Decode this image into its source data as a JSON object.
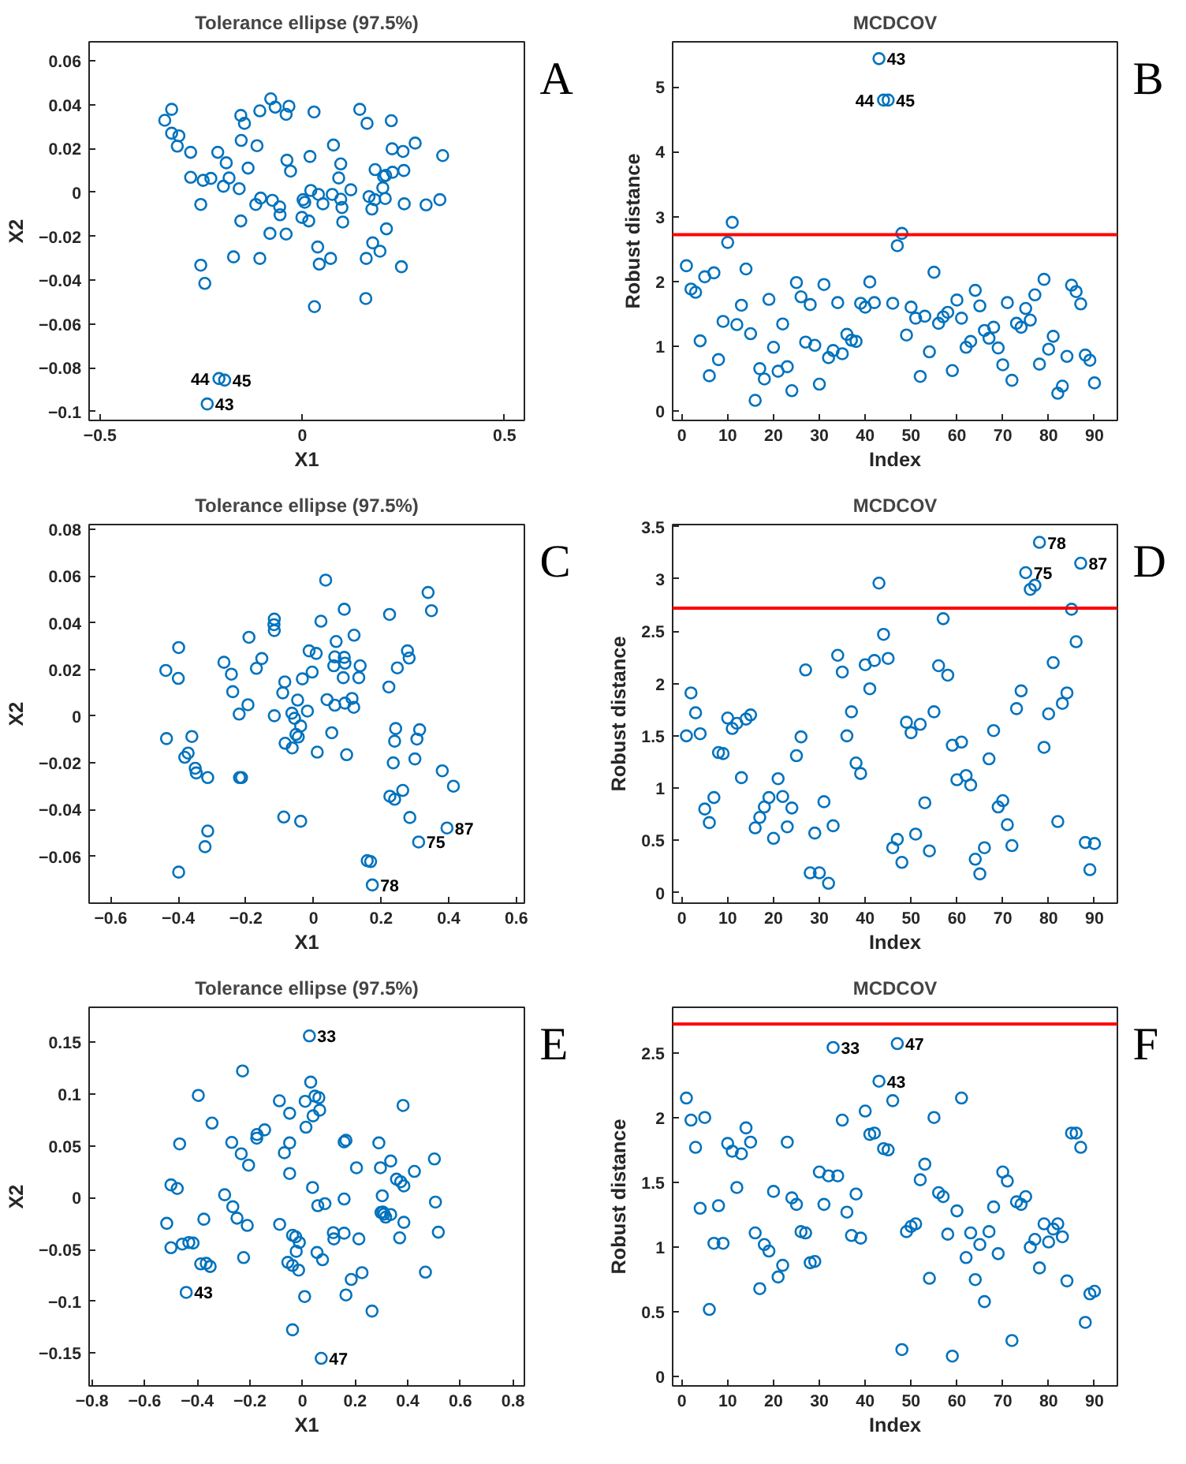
{
  "chart_data": [
    {
      "type": "scatter",
      "title": "Tolerance ellipse (97.5%)",
      "xlabel": "X1",
      "ylabel": "X2",
      "marker": "circle",
      "xlim": [
        -0.527,
        0.549
      ],
      "ylim": [
        -0.104,
        0.0687
      ],
      "xticks": [
        -0.5,
        0,
        0.5
      ],
      "yticks": [
        -0.1,
        -0.08,
        -0.06,
        -0.04,
        -0.02,
        0,
        0.02,
        0.04,
        0.06
      ],
      "series": [
        {
          "color": "#0072bd",
          "x": [
            -0.34,
            -0.323,
            -0.323,
            -0.305,
            -0.309,
            -0.276,
            -0.276,
            -0.245,
            -0.226,
            -0.251,
            -0.209,
            -0.188,
            -0.181,
            -0.195,
            -0.156,
            -0.152,
            -0.143,
            -0.151,
            -0.134,
            -0.152,
            -0.17,
            -0.251,
            -0.241,
            -0.105,
            -0.078,
            -0.067,
            -0.033,
            -0.04,
            -0.112,
            -0.115,
            -0.103,
            -0.074,
            -0.056,
            -0.055,
            -0.038,
            -0.029,
            -0.08,
            -0.04,
            -0.105,
            0.029,
            0.019,
            0.021,
            0.002,
            0.006,
            -0.001,
            0.016,
            0.04,
            0.051,
            0.038,
            0.042,
            0.07,
            0.03,
            0.077,
            0.09,
            0.095,
            0.074,
            0.095,
            0.098,
            0.1,
            0.12,
            0.142,
            0.16,
            0.18,
            0.165,
            0.179,
            0.172,
            0.158,
            0.174,
            0.192,
            0.157,
            0.22,
            0.222,
            0.249,
            0.223,
            0.251,
            0.279,
            0.201,
            0.206,
            0.199,
            0.205,
            0.208,
            0.252,
            0.245,
            0.347,
            0.34,
            0.306,
            -0.206,
            -0.192,
            -0.235
          ],
          "values": [
            0.0329,
            0.0379,
            0.027,
            0.0258,
            0.0211,
            0.0183,
            0.0069,
            0.0055,
            0.0064,
            -0.0055,
            0.0183,
            0.0135,
            0.0066,
            0.0028,
            0.0017,
            0.0351,
            0.0315,
            0.0237,
            0.0111,
            -0.013,
            -0.0294,
            -0.0332,
            -0.0415,
            0.0372,
            0.0427,
            0.0389,
            0.0393,
            0.0356,
            0.0213,
            -0.0055,
            -0.0026,
            -0.0036,
            -0.0066,
            -0.0102,
            0.0147,
            0.0097,
            -0.0187,
            -0.019,
            -0.0301,
            0.0367,
            0.0164,
            0.0009,
            -0.0033,
            -0.0045,
            -0.0114,
            -0.013,
            -0.0009,
            -0.0052,
            -0.0249,
            -0.0327,
            -0.0301,
            -0.0521,
            0.0216,
            0.0066,
            0.013,
            -0.0009,
            -0.0031,
            -0.0069,
            -0.0135,
            0.0012,
            0.0379,
            0.0315,
            0.0104,
            -0.0019,
            -0.0033,
            -0.0076,
            -0.0301,
            -0.023,
            -0.0268,
            -0.0484,
            0.0327,
            0.0199,
            0.0187,
            0.0092,
            0.01,
            0.0225,
            0.0073,
            0.0078,
            0.0021,
            -0.0028,
            -0.0166,
            -0.0052,
            -0.0339,
            0.0168,
            -0.0033,
            -0.0057,
            -0.0849,
            -0.0856,
            -0.0965
          ]
        }
      ],
      "annotations": [
        "A",
        {
          "text": "44",
          "x": -0.206,
          "y": -0.0849
        },
        {
          "text": "45",
          "x": -0.192,
          "y": -0.0856
        },
        {
          "text": "43",
          "x": -0.235,
          "y": -0.0965
        }
      ]
    },
    {
      "type": "scatter",
      "title": "MCDCOV",
      "xlabel": "Index",
      "ylabel": "Robust distance",
      "marker": "circle",
      "xlim": [
        -2,
        95
      ],
      "ylim": [
        -0.15,
        5.7
      ],
      "xticks": [
        0,
        10,
        20,
        30,
        40,
        50,
        60,
        70,
        80,
        90
      ],
      "yticks": [
        0,
        1,
        2,
        3,
        4,
        5
      ],
      "x": [
        1,
        2,
        3,
        4,
        5,
        6,
        7,
        8,
        9,
        10,
        11,
        12,
        13,
        14,
        15,
        16,
        17,
        18,
        19,
        20,
        21,
        22,
        23,
        24,
        25,
        26,
        27,
        28,
        29,
        30,
        31,
        32,
        33,
        34,
        35,
        36,
        37,
        38,
        39,
        40,
        41,
        42,
        43,
        44,
        45,
        46,
        47,
        48,
        49,
        50,
        51,
        52,
        53,
        54,
        55,
        56,
        57,
        58,
        59,
        60,
        61,
        62,
        63,
        64,
        65,
        66,
        67,
        68,
        69,
        70,
        71,
        72,
        73,
        74,
        75,
        76,
        77,
        78,
        79,
        80,
        81,
        82,
        83,
        84,
        85,
        86,
        87,
        88,
        89,
        90
      ],
      "series": [
        {
          "color": "#0072bd",
          "values": [
            2.24,
            1.88,
            1.83,
            1.08,
            2.07,
            0.54,
            2.13,
            0.79,
            1.38,
            2.6,
            2.91,
            1.33,
            1.63,
            2.19,
            1.19,
            0.16,
            0.65,
            0.49,
            1.72,
            0.98,
            0.61,
            1.34,
            0.68,
            0.31,
            1.98,
            1.76,
            1.06,
            1.64,
            1.01,
            0.41,
            1.95,
            0.82,
            0.93,
            1.67,
            0.88,
            1.18,
            1.09,
            1.07,
            1.66,
            1.6,
            1.99,
            1.67,
            5.44,
            4.8,
            4.8,
            1.66,
            2.55,
            2.74,
            1.17,
            1.6,
            1.43,
            0.53,
            1.46,
            0.91,
            2.14,
            1.35,
            1.45,
            1.52,
            0.62,
            1.71,
            1.43,
            0.98,
            1.07,
            1.86,
            1.62,
            1.24,
            1.12,
            1.29,
            0.97,
            0.71,
            1.67,
            0.47,
            1.35,
            1.29,
            1.58,
            1.4,
            1.79,
            0.72,
            2.03,
            0.95,
            1.15,
            0.27,
            0.38,
            0.84,
            1.94,
            1.84,
            1.65,
            0.86,
            0.78,
            0.43
          ]
        }
      ],
      "ref_lines": [
        {
          "axis": "y",
          "value": 2.72,
          "color": "#ff0000"
        }
      ],
      "annotations": [
        "B",
        {
          "text": "43",
          "x": 43,
          "y": 5.44
        },
        {
          "text": "44",
          "x": 44,
          "y": 4.8
        },
        {
          "text": "45",
          "x": 45,
          "y": 4.8
        }
      ]
    },
    {
      "type": "scatter",
      "title": "Tolerance ellipse (97.5%)",
      "xlabel": "X1",
      "ylabel": "X2",
      "marker": "circle",
      "xlim": [
        -0.664,
        0.624
      ],
      "ylim": [
        -0.0801,
        0.0821
      ],
      "xticks": [
        -0.6,
        -0.4,
        -0.2,
        0,
        0.2,
        0.4,
        0.6
      ],
      "yticks": [
        -0.06,
        -0.04,
        -0.02,
        0,
        0.02,
        0.04,
        0.06,
        0.08
      ],
      "series": [
        {
          "color": "#0072bd",
          "x": [
            0.036,
            0.091,
            0.339,
            0.349,
            0.225,
            -0.116,
            -0.117,
            -0.116,
            -0.191,
            0.022,
            -0.013,
            0.008,
            0.12,
            0.067,
            0.091,
            0.063,
            0.06,
            0.093,
            0.138,
            0.134,
            0.088,
            -0.265,
            -0.437,
            -0.4,
            -0.399,
            -0.243,
            -0.169,
            -0.153,
            -0.085,
            -0.033,
            -0.004,
            -0.239,
            -0.194,
            -0.22,
            -0.116,
            -0.091,
            -0.047,
            -0.018,
            -0.064,
            -0.056,
            -0.038,
            -0.052,
            -0.045,
            -0.084,
            -0.063,
            0.011,
            0.063,
            0.054,
            0.04,
            0.093,
            0.114,
            0.119,
            0.098,
            0.223,
            0.278,
            0.283,
            0.248,
            0.243,
            0.314,
            0.24,
            0.306,
            0.236,
            0.3,
            -0.435,
            -0.36,
            -0.371,
            -0.381,
            -0.35,
            -0.347,
            -0.313,
            -0.219,
            -0.213,
            -0.088,
            -0.038,
            -0.313,
            -0.321,
            -0.399,
            0.226,
            0.24,
            0.264,
            0.285,
            0.381,
            0.414,
            0.395,
            0.311,
            0.159,
            0.169,
            0.174
          ],
          "values": [
            0.0583,
            0.0458,
            0.053,
            0.0452,
            0.0436,
            0.0416,
            0.0392,
            0.0367,
            0.0338,
            0.0407,
            0.028,
            0.0269,
            0.0347,
            0.032,
            0.0252,
            0.0254,
            0.0216,
            0.0227,
            0.0216,
            0.0165,
            0.0165,
            0.0231,
            0.0196,
            0.0162,
            0.0294,
            0.018,
            0.0205,
            0.0247,
            0.0147,
            0.016,
            0.0189,
            0.0105,
            0.0049,
            0.0009,
            0.0002,
            0.01,
            0.0069,
            0.0022,
            0.0013,
            -0.0009,
            -0.0042,
            -0.0078,
            -0.0089,
            -0.0116,
            -0.0136,
            -0.0154,
            0.0047,
            -0.0071,
            0.0071,
            0.0056,
            0.0076,
            0.0038,
            -0.0165,
            0.0125,
            0.028,
            0.0249,
            0.0207,
            -0.0053,
            -0.0058,
            -0.0107,
            -0.0098,
            -0.02,
            -0.0183,
            -0.0096,
            -0.0087,
            -0.0158,
            -0.0176,
            -0.0223,
            -0.0243,
            -0.0263,
            -0.0263,
            -0.0263,
            -0.0432,
            -0.045,
            -0.0492,
            -0.0559,
            -0.0668,
            -0.0343,
            -0.0356,
            -0.0318,
            -0.0434,
            -0.0234,
            -0.03,
            -0.0479,
            -0.0539,
            -0.0619,
            -0.0623,
            -0.0723
          ]
        }
      ],
      "annotations": [
        "C",
        {
          "text": "87",
          "x": 0.395,
          "y": -0.0479
        },
        {
          "text": "75",
          "x": 0.311,
          "y": -0.0539
        },
        {
          "text": "78",
          "x": 0.174,
          "y": -0.0723
        }
      ]
    },
    {
      "type": "scatter",
      "title": "MCDCOV",
      "xlabel": "Index",
      "ylabel": "Robust distance",
      "marker": "circle",
      "xlim": [
        -2,
        95
      ],
      "ylim": [
        -0.1,
        3.52
      ],
      "xticks": [
        0,
        10,
        20,
        30,
        40,
        50,
        60,
        70,
        80,
        90
      ],
      "yticks": [
        0,
        0.5,
        1,
        1.5,
        2,
        2.5,
        3,
        3.5
      ],
      "x": [
        1,
        2,
        3,
        4,
        5,
        6,
        7,
        8,
        9,
        10,
        11,
        12,
        13,
        14,
        15,
        16,
        17,
        18,
        19,
        20,
        21,
        22,
        23,
        24,
        25,
        26,
        27,
        28,
        29,
        30,
        31,
        32,
        33,
        34,
        35,
        36,
        37,
        38,
        39,
        40,
        41,
        42,
        43,
        44,
        45,
        46,
        47,
        48,
        49,
        50,
        51,
        52,
        53,
        54,
        55,
        56,
        57,
        58,
        59,
        60,
        61,
        62,
        63,
        64,
        65,
        66,
        67,
        68,
        69,
        70,
        71,
        72,
        73,
        74,
        75,
        76,
        77,
        78,
        79,
        80,
        81,
        82,
        83,
        84,
        85,
        86,
        87,
        88,
        89,
        90
      ],
      "series": [
        {
          "color": "#0072bd",
          "values": [
            1.5,
            1.91,
            1.72,
            1.52,
            0.8,
            0.67,
            0.91,
            1.34,
            1.33,
            1.67,
            1.57,
            1.62,
            1.1,
            1.66,
            1.7,
            0.62,
            0.72,
            0.82,
            0.91,
            0.52,
            1.09,
            0.92,
            0.63,
            0.81,
            1.31,
            1.49,
            2.13,
            0.19,
            0.57,
            0.19,
            0.87,
            0.09,
            0.64,
            2.27,
            2.11,
            1.5,
            1.73,
            1.24,
            1.14,
            2.18,
            1.95,
            2.22,
            2.96,
            2.47,
            2.24,
            0.43,
            0.51,
            0.29,
            1.63,
            1.53,
            0.56,
            1.61,
            0.86,
            0.4,
            1.73,
            2.17,
            2.62,
            2.08,
            1.41,
            1.08,
            1.44,
            1.12,
            1.03,
            0.32,
            0.18,
            0.43,
            1.28,
            1.55,
            0.82,
            0.88,
            0.65,
            0.45,
            1.76,
            1.93,
            3.06,
            2.9,
            2.94,
            3.35,
            1.39,
            1.71,
            2.2,
            0.68,
            1.81,
            1.91,
            2.71,
            2.4,
            3.15,
            0.48,
            0.22,
            0.47
          ]
        }
      ],
      "ref_lines": [
        {
          "axis": "y",
          "value": 2.72,
          "color": "#ff0000"
        }
      ],
      "annotations": [
        "D",
        {
          "text": "78",
          "x": 78,
          "y": 3.35
        },
        {
          "text": "75",
          "x": 75,
          "y": 3.06
        },
        {
          "text": "87",
          "x": 87,
          "y": 3.15
        }
      ]
    },
    {
      "type": "scatter",
      "title": "Tolerance ellipse (97.5%)",
      "xlabel": "X1",
      "ylabel": "X2",
      "marker": "circle",
      "xlim": [
        -0.811,
        0.843
      ],
      "ylim": [
        -0.1816,
        0.1836
      ],
      "xticks": [
        -0.8,
        -0.6,
        -0.4,
        -0.2,
        0,
        0.2,
        0.4,
        0.6,
        0.8
      ],
      "yticks": [
        -0.15,
        -0.1,
        -0.05,
        0,
        0.05,
        0.1,
        0.15
      ],
      "series": [
        {
          "color": "#0072bd",
          "x": [
            0.026,
            -0.228,
            -0.396,
            0.031,
            -0.088,
            -0.049,
            0.01,
            0.047,
            0.062,
            0.065,
            0.04,
            0.382,
            -0.344,
            -0.144,
            -0.173,
            -0.174,
            -0.467,
            -0.269,
            -0.233,
            -0.205,
            -0.049,
            -0.069,
            0.013,
            0.158,
            0.165,
            0.29,
            0.205,
            0.296,
            0.335,
            0.425,
            0.501,
            -0.049,
            0.038,
            0.357,
            0.373,
            0.385,
            -0.5,
            -0.476,
            -0.296,
            -0.265,
            -0.249,
            -0.21,
            -0.516,
            -0.375,
            -0.087,
            -0.038,
            -0.026,
            -0.012,
            -0.024,
            0.058,
            0.085,
            0.158,
            0.303,
            0.298,
            0.31,
            0.335,
            0.316,
            0.385,
            0.305,
            0.505,
            0.516,
            0.369,
            0.117,
            0.119,
            0.158,
            0.214,
            -0.5,
            -0.457,
            -0.432,
            -0.416,
            -0.224,
            -0.387,
            -0.366,
            -0.351,
            -0.056,
            -0.038,
            -0.015,
            0.055,
            0.076,
            0.185,
            0.226,
            0.165,
            0.008,
            0.264,
            0.467,
            -0.038,
            -0.442,
            0.071
          ],
          "values": [
            0.156,
            0.1222,
            0.0986,
            0.1114,
            0.0934,
            0.0814,
            0.0929,
            0.0979,
            0.0964,
            0.0844,
            0.0789,
            0.0889,
            0.0719,
            0.0654,
            0.0609,
            0.0573,
            0.0518,
            0.0533,
            0.0423,
            0.0313,
            0.0528,
            0.0433,
            0.0679,
            0.0538,
            0.0553,
            0.0528,
            0.0288,
            0.0288,
            0.0353,
            0.0253,
            0.0373,
            0.0233,
            0.0098,
            0.0178,
            0.0153,
            0.0113,
            0.0123,
            0.0088,
            0.0028,
            -0.0088,
            -0.0198,
            -0.0268,
            -0.0248,
            -0.0208,
            -0.0258,
            -0.0363,
            -0.0378,
            -0.0433,
            -0.0518,
            -0.0078,
            -0.0058,
            -0.0013,
            0.0018,
            -0.0143,
            -0.0158,
            -0.0163,
            -0.0188,
            -0.0238,
            -0.0138,
            -0.0043,
            -0.0333,
            -0.0388,
            -0.0338,
            -0.0398,
            -0.0343,
            -0.0398,
            -0.0483,
            -0.0448,
            -0.0433,
            -0.0438,
            -0.0578,
            -0.0639,
            -0.0634,
            -0.0664,
            -0.0624,
            -0.0654,
            -0.0699,
            -0.0529,
            -0.0599,
            -0.0789,
            -0.0724,
            -0.0939,
            -0.0954,
            -0.1094,
            -0.0719,
            -0.1275,
            -0.0914,
            -0.155
          ]
        }
      ],
      "annotations": [
        "E",
        {
          "text": "33",
          "x": 0.026,
          "y": 0.156
        },
        {
          "text": "43",
          "x": -0.442,
          "y": -0.0914
        },
        {
          "text": "47",
          "x": 0.071,
          "y": -0.155
        }
      ]
    },
    {
      "type": "scatter",
      "title": "MCDCOV",
      "xlabel": "Index",
      "ylabel": "Robust distance",
      "marker": "circle",
      "xlim": [
        -2,
        95
      ],
      "ylim": [
        -0.07,
        2.85
      ],
      "xticks": [
        0,
        10,
        20,
        30,
        40,
        50,
        60,
        70,
        80,
        90
      ],
      "yticks": [
        0,
        0.5,
        1,
        1.5,
        2,
        2.5
      ],
      "x": [
        1,
        2,
        3,
        4,
        5,
        6,
        7,
        8,
        9,
        10,
        11,
        12,
        13,
        14,
        15,
        16,
        17,
        18,
        19,
        20,
        21,
        22,
        23,
        24,
        25,
        26,
        27,
        28,
        29,
        30,
        31,
        32,
        33,
        34,
        35,
        36,
        37,
        38,
        39,
        40,
        41,
        42,
        43,
        44,
        45,
        46,
        47,
        48,
        49,
        50,
        51,
        52,
        53,
        54,
        55,
        56,
        57,
        58,
        59,
        60,
        61,
        62,
        63,
        64,
        65,
        66,
        67,
        68,
        69,
        70,
        71,
        72,
        73,
        74,
        75,
        76,
        77,
        78,
        79,
        80,
        81,
        82,
        83,
        84,
        85,
        86,
        87,
        88,
        89,
        90
      ],
      "series": [
        {
          "color": "#0072bd",
          "values": [
            2.15,
            1.98,
            1.77,
            1.3,
            2.0,
            0.52,
            1.03,
            1.32,
            1.03,
            1.8,
            1.74,
            1.46,
            1.72,
            1.92,
            1.81,
            1.11,
            0.68,
            1.02,
            0.97,
            1.43,
            0.77,
            0.86,
            1.81,
            1.38,
            1.33,
            1.12,
            1.11,
            0.88,
            0.89,
            1.58,
            1.33,
            1.55,
            2.54,
            1.55,
            1.98,
            1.27,
            1.09,
            1.41,
            1.07,
            2.05,
            1.87,
            1.88,
            2.28,
            1.76,
            1.75,
            2.13,
            2.57,
            0.21,
            1.12,
            1.16,
            1.18,
            1.52,
            1.64,
            0.76,
            2.0,
            1.42,
            1.39,
            1.1,
            0.16,
            1.28,
            2.15,
            0.92,
            1.11,
            0.75,
            1.02,
            0.58,
            1.12,
            1.31,
            0.95,
            1.58,
            1.51,
            0.28,
            1.35,
            1.33,
            1.39,
            1.0,
            1.06,
            0.84,
            1.18,
            1.04,
            1.14,
            1.18,
            1.08,
            0.74,
            1.88,
            1.88,
            1.77,
            0.42,
            0.64,
            0.66
          ]
        }
      ],
      "ref_lines": [
        {
          "axis": "y",
          "value": 2.72,
          "color": "#ff0000"
        }
      ],
      "annotations": [
        "F",
        {
          "text": "33",
          "x": 33,
          "y": 2.54
        },
        {
          "text": "47",
          "x": 47,
          "y": 2.57
        },
        {
          "text": "43",
          "x": 43,
          "y": 2.28
        }
      ]
    }
  ]
}
